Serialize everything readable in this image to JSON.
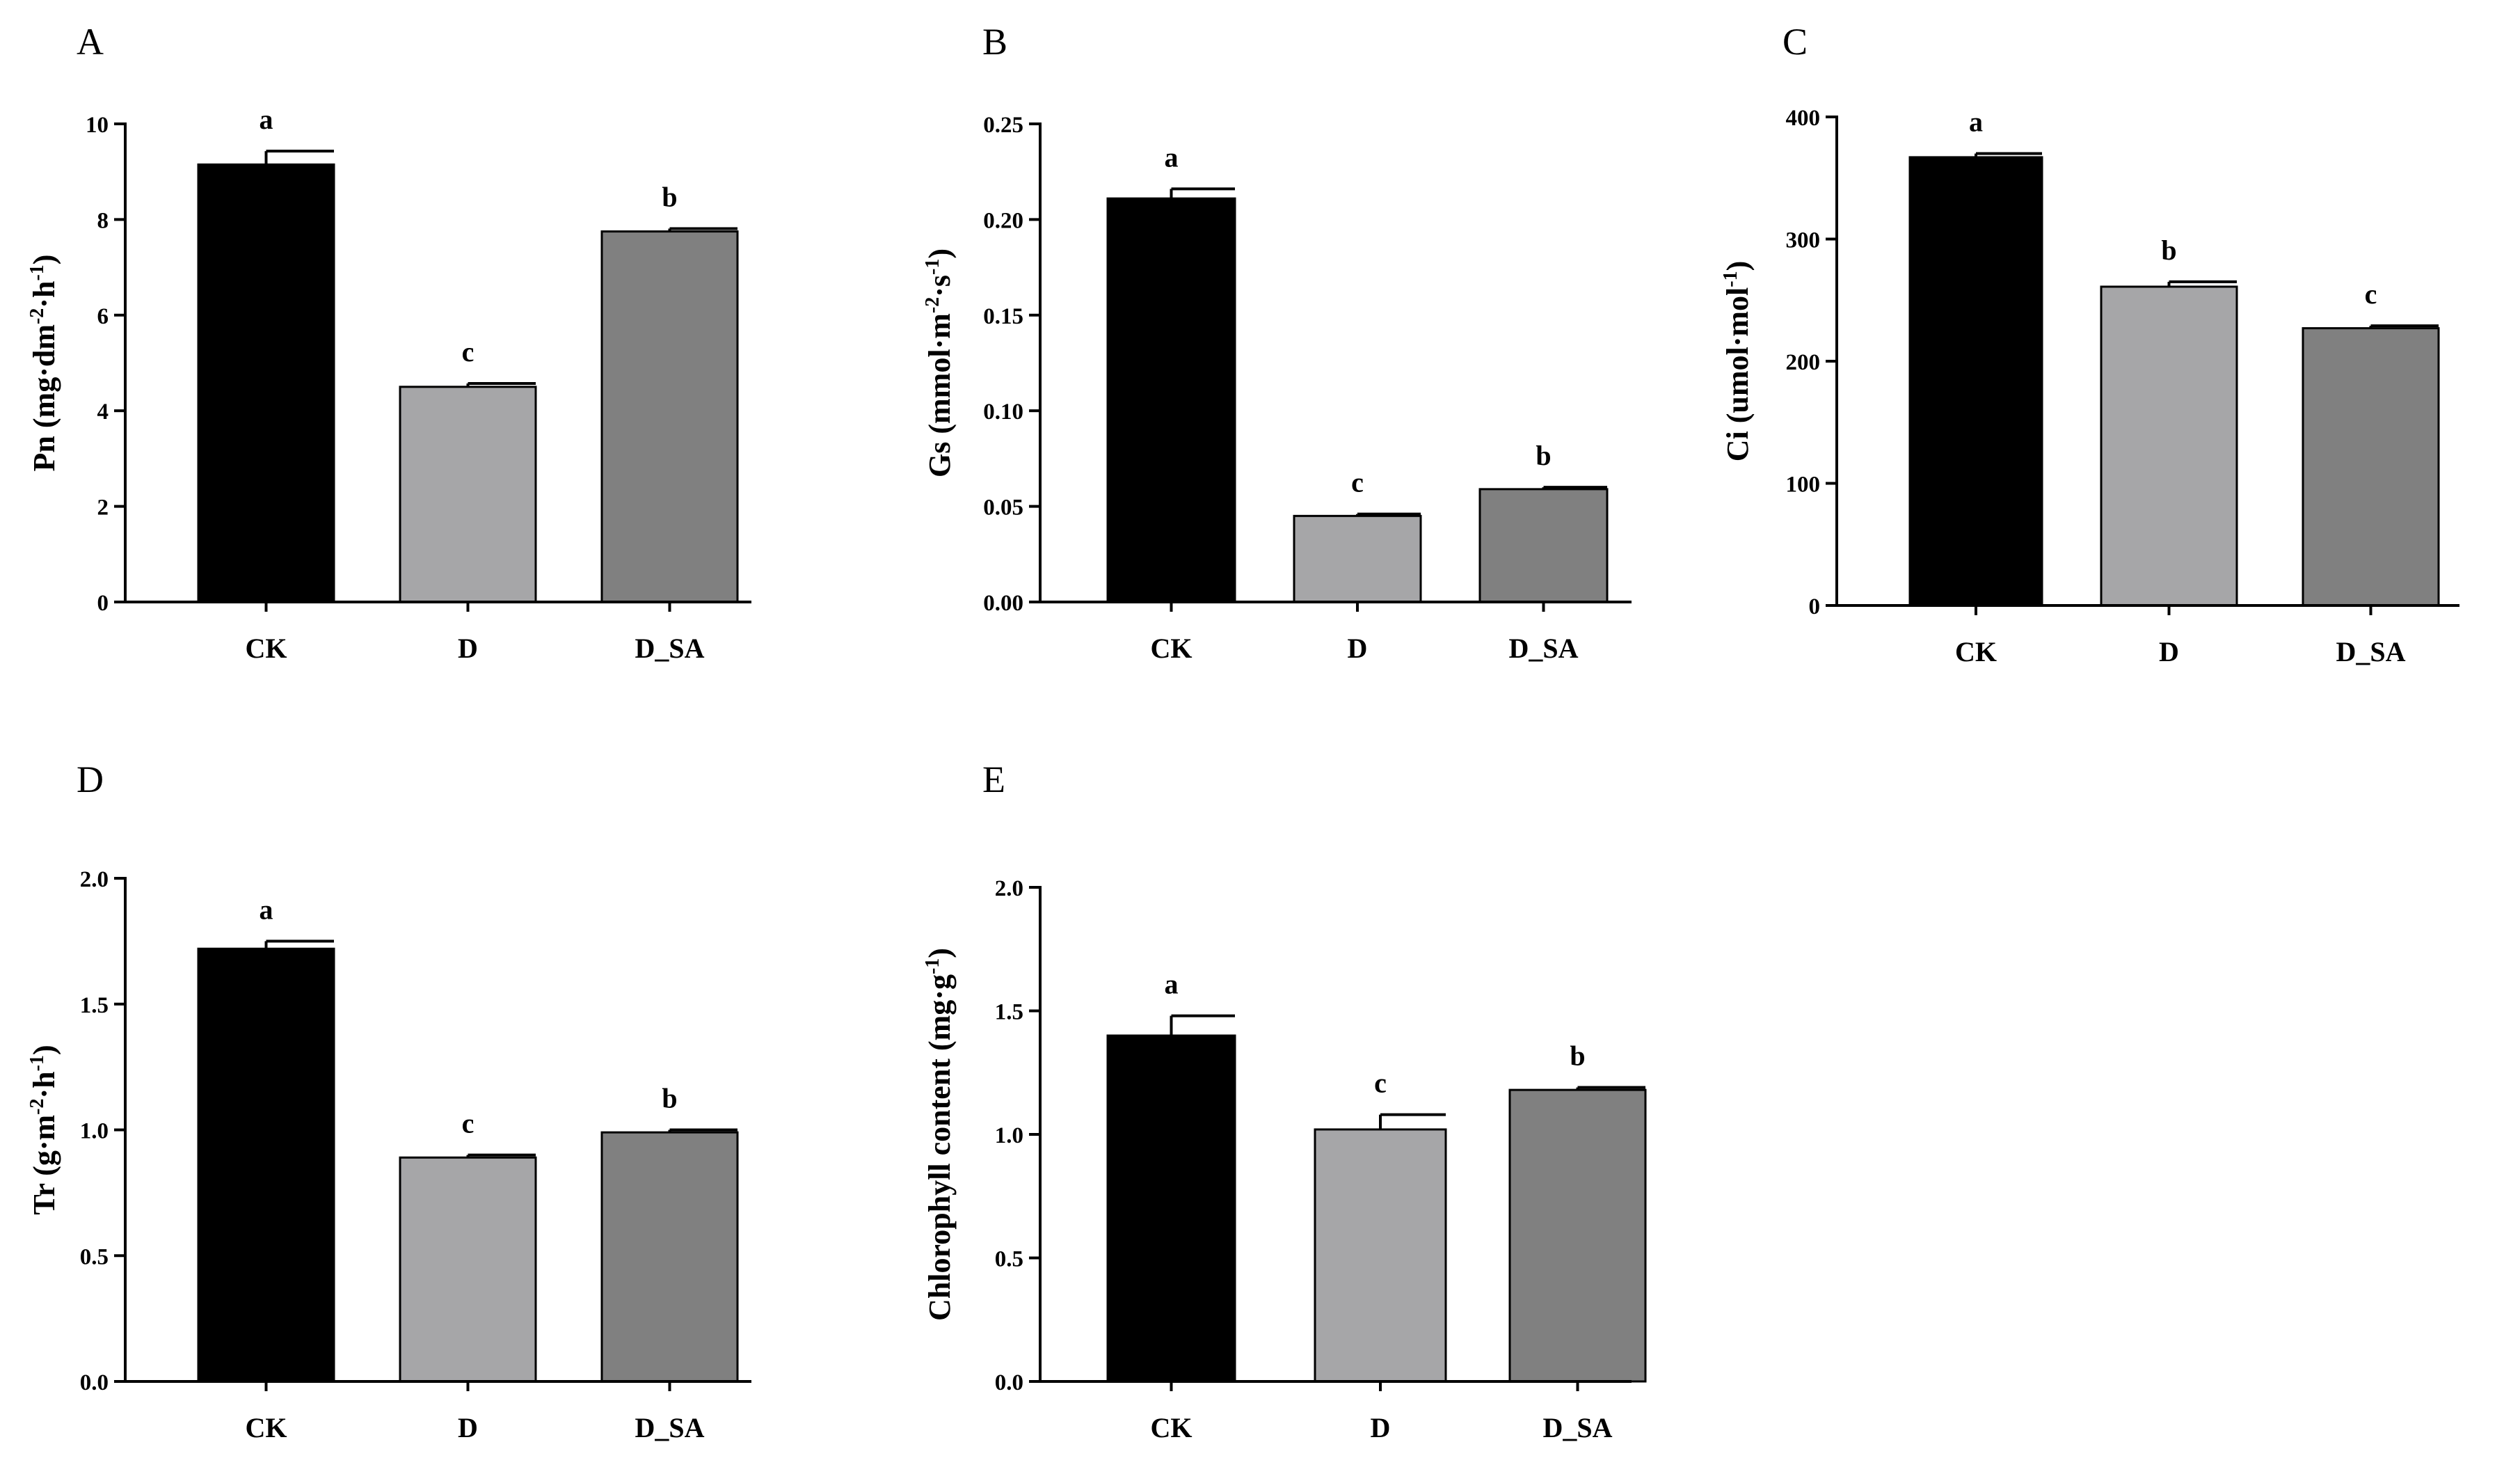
{
  "figure": {
    "colors": {
      "CK": "#000000",
      "D": "#a6a6a8",
      "D_SA": "#808080",
      "error": "#000000",
      "axis": "#000000"
    }
  },
  "chart_data": [
    {
      "panel": "A",
      "type": "bar",
      "categories": [
        "CK",
        "D",
        "D_SA"
      ],
      "values": [
        9.15,
        4.5,
        7.75
      ],
      "errors": [
        0.28,
        0.07,
        0.06
      ],
      "significance": [
        "a",
        "c",
        "b"
      ],
      "ylabel": {
        "main": "Pn (mg",
        "parts": [
          [
            "·dm",
            ""
          ],
          [
            "-2",
            "sup"
          ],
          [
            "·h",
            ""
          ],
          [
            "-1",
            "sup"
          ],
          [
            ")",
            ""
          ]
        ]
      },
      "ylim": [
        0,
        10
      ],
      "yticks": [
        "0",
        "2",
        "4",
        "6",
        "8",
        "10"
      ],
      "ytick_values": [
        0,
        2,
        4,
        6,
        8,
        10
      ]
    },
    {
      "panel": "B",
      "type": "bar",
      "categories": [
        "CK",
        "D",
        "D_SA"
      ],
      "values": [
        0.211,
        0.045,
        0.059
      ],
      "errors": [
        0.005,
        0.001,
        0.001
      ],
      "significance": [
        "a",
        "c",
        "b"
      ],
      "ylabel": {
        "main": "Gs (mmol",
        "parts": [
          [
            "·m",
            ""
          ],
          [
            "-2",
            "sup"
          ],
          [
            "·s",
            ""
          ],
          [
            "-1",
            "sup"
          ],
          [
            ")",
            ""
          ]
        ]
      },
      "ylim": [
        0,
        0.25
      ],
      "yticks": [
        "0.00",
        "0.05",
        "0.10",
        "0.15",
        "0.20",
        "0.25"
      ],
      "ytick_values": [
        0,
        0.05,
        0.1,
        0.15,
        0.2,
        0.25
      ]
    },
    {
      "panel": "C",
      "type": "bar",
      "categories": [
        "CK",
        "D",
        "D_SA"
      ],
      "values": [
        367,
        261,
        227
      ],
      "errors": [
        3,
        4,
        2
      ],
      "significance": [
        "a",
        "b",
        "c"
      ],
      "ylabel": {
        "main": "Ci (umol",
        "parts": [
          [
            "·mol",
            ""
          ],
          [
            "-1",
            "sup"
          ],
          [
            ")",
            ""
          ]
        ]
      },
      "ylim": [
        0,
        400
      ],
      "yticks": [
        "0",
        "100",
        "200",
        "300",
        "400"
      ],
      "ytick_values": [
        0,
        100,
        200,
        300,
        400
      ]
    },
    {
      "panel": "D",
      "type": "bar",
      "categories": [
        "CK",
        "D",
        "D_SA"
      ],
      "values": [
        1.72,
        0.89,
        0.99
      ],
      "errors": [
        0.03,
        0.01,
        0.01
      ],
      "significance": [
        "a",
        "c",
        "b"
      ],
      "ylabel": {
        "main": "Tr (g",
        "parts": [
          [
            "·m",
            ""
          ],
          [
            "-2",
            "sup"
          ],
          [
            "·h",
            ""
          ],
          [
            "-1",
            "sup"
          ],
          [
            ")",
            ""
          ]
        ]
      },
      "ylim": [
        0,
        2.0
      ],
      "yticks": [
        "0.0",
        "0.5",
        "1.0",
        "1.5",
        "2.0"
      ],
      "ytick_values": [
        0,
        0.5,
        1.0,
        1.5,
        2.0
      ]
    },
    {
      "panel": "E",
      "type": "bar",
      "categories": [
        "CK",
        "D",
        "D_SA"
      ],
      "values": [
        1.4,
        1.02,
        1.18
      ],
      "errors": [
        0.08,
        0.06,
        0.01
      ],
      "significance": [
        "a",
        "c",
        "b"
      ],
      "ylabel": {
        "main": "Chlorophyll content  (mg",
        "parts": [
          [
            "·g",
            ""
          ],
          [
            "-1",
            "sup"
          ],
          [
            ")",
            ""
          ]
        ]
      },
      "ylim": [
        0,
        2.0
      ],
      "yticks": [
        "0.0",
        "0.5",
        "1.0",
        "1.5",
        "2.0"
      ],
      "ytick_values": [
        0,
        0.5,
        1.0,
        1.5,
        2.0
      ]
    }
  ]
}
